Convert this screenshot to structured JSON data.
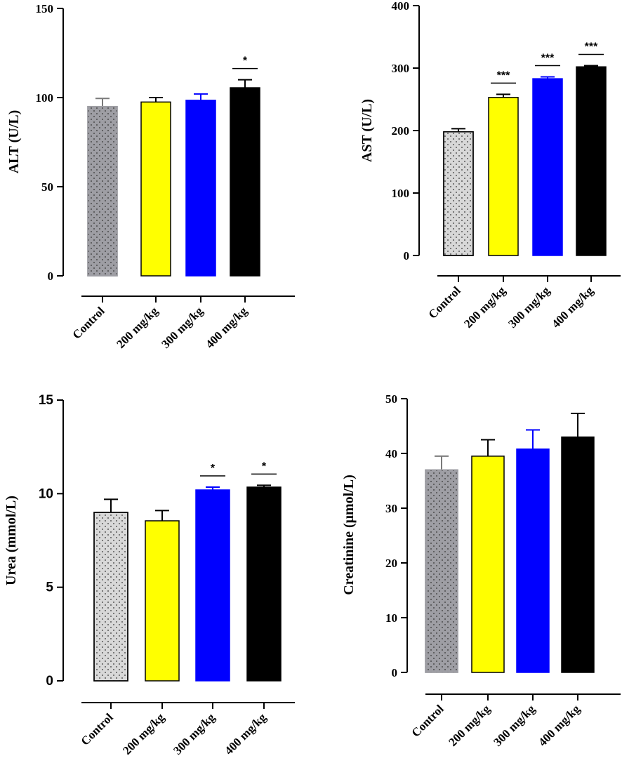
{
  "chart_data": [
    {
      "id": "alt",
      "type": "bar",
      "title": "",
      "ylabel": "ALT (U/L)",
      "ylim": [
        0,
        150
      ],
      "yticks": [
        0,
        50,
        100,
        150
      ],
      "categories": [
        "Control",
        "200 mg/kg",
        "300 mg/kg",
        "400 mg/kg"
      ],
      "values": [
        95,
        97.5,
        98.5,
        105.5
      ],
      "errors": [
        4.5,
        2.5,
        3.5,
        4.5
      ],
      "fills": [
        "#9e9ea4",
        "#ffff00",
        "#0000ff",
        "#000000"
      ],
      "dotted": [
        true,
        false,
        false,
        false
      ],
      "significance": [
        "",
        "",
        "",
        "*"
      ]
    },
    {
      "id": "ast",
      "type": "bar",
      "title": "",
      "ylabel": "AST (U/L)",
      "ylim": [
        0,
        400
      ],
      "yticks": [
        0,
        100,
        200,
        300,
        400
      ],
      "categories": [
        "Control",
        "200 mg/kg",
        "300 mg/kg",
        "400 mg/kg"
      ],
      "values": [
        198,
        253,
        283,
        302
      ],
      "errors": [
        5,
        5,
        3,
        2
      ],
      "fills": [
        "#d8d8d8",
        "#ffff00",
        "#0000ff",
        "#000000"
      ],
      "dotted": [
        true,
        false,
        false,
        false
      ],
      "significance": [
        "",
        "***",
        "***",
        "***"
      ]
    },
    {
      "id": "urea",
      "type": "bar",
      "title": "",
      "ylabel": "Urea (mmol/L)",
      "ylim": [
        0,
        15
      ],
      "yticks": [
        0,
        5,
        10,
        15
      ],
      "categories": [
        "Control",
        "200 mg/kg",
        "300 mg/kg",
        "400 mg/kg"
      ],
      "values": [
        9.0,
        8.55,
        10.2,
        10.35
      ],
      "errors": [
        0.7,
        0.55,
        0.15,
        0.1
      ],
      "fills": [
        "#d8d8d8",
        "#ffff00",
        "#0000ff",
        "#000000"
      ],
      "dotted": [
        true,
        false,
        false,
        false
      ],
      "significance": [
        "",
        "",
        "*",
        "*"
      ]
    },
    {
      "id": "creatinine",
      "type": "bar",
      "title": "",
      "ylabel": "Creatinine (μmol/L)",
      "ylim": [
        0,
        50
      ],
      "yticks": [
        0,
        10,
        20,
        30,
        40,
        50
      ],
      "categories": [
        "Control",
        "200 mg/kg",
        "300 mg/kg",
        "400 mg/kg"
      ],
      "values": [
        37,
        39.5,
        40.8,
        43
      ],
      "errors": [
        2.5,
        3,
        3.5,
        4.3
      ],
      "fills": [
        "#9e9ea4",
        "#ffff00",
        "#0000ff",
        "#000000"
      ],
      "dotted": [
        true,
        false,
        false,
        false
      ],
      "significance": [
        "",
        "",
        "",
        ""
      ]
    }
  ]
}
